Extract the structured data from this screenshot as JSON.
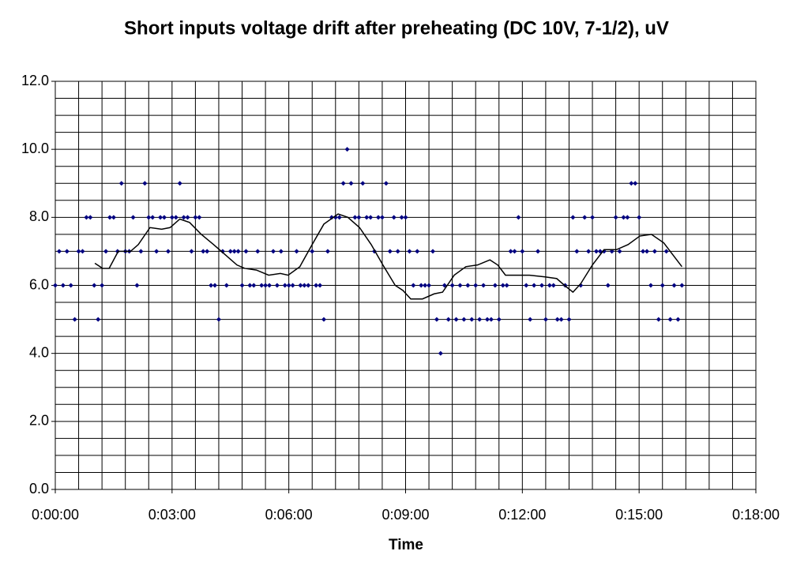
{
  "chart_data": {
    "type": "scatter",
    "title": "Short inputs voltage drift after preheating (DC 10V, 7-1/2), uV",
    "x_label": "Time",
    "xlim": [
      0,
      1080
    ],
    "ylim": [
      0,
      12
    ],
    "xticks": [
      {
        "value": 0,
        "label": "0:00:00"
      },
      {
        "value": 180,
        "label": "0:03:00"
      },
      {
        "value": 360,
        "label": "0:06:00"
      },
      {
        "value": 540,
        "label": "0:09:00"
      },
      {
        "value": 720,
        "label": "0:12:00"
      },
      {
        "value": 900,
        "label": "0:15:00"
      },
      {
        "value": 1080,
        "label": "0:18:00"
      }
    ],
    "yticks": [
      {
        "value": 0,
        "label": "0.0"
      },
      {
        "value": 2,
        "label": "2.0"
      },
      {
        "value": 4,
        "label": "4.0"
      },
      {
        "value": 6,
        "label": "6.0"
      },
      {
        "value": 8,
        "label": "8.0"
      },
      {
        "value": 10,
        "label": "10.0"
      },
      {
        "value": 12,
        "label": "12.0"
      }
    ],
    "xgrid": [
      0,
      36,
      72,
      108,
      144,
      180,
      216,
      252,
      288,
      324,
      360,
      396,
      432,
      468,
      504,
      540,
      576,
      612,
      648,
      684,
      720,
      756,
      792,
      828,
      864,
      900,
      936,
      972,
      1008,
      1044,
      1080
    ],
    "ygrid": [
      0,
      0.5,
      1,
      1.5,
      2,
      2.5,
      3,
      3.5,
      4,
      4.5,
      5,
      5.5,
      6,
      6.5,
      7,
      7.5,
      8,
      8.5,
      9,
      9.5,
      10,
      10.5,
      11,
      11.5,
      12
    ],
    "grid": true,
    "series": [
      {
        "type": "scatter",
        "color": "#000080",
        "x": [
          0,
          6,
          12,
          18,
          24,
          30,
          36,
          42,
          48,
          54,
          60,
          66,
          72,
          78,
          84,
          90,
          96,
          102,
          108,
          114,
          120,
          126,
          132,
          138,
          144,
          150,
          156,
          162,
          168,
          174,
          180,
          186,
          192,
          198,
          204,
          210,
          216,
          222,
          228,
          234,
          240,
          246,
          252,
          258,
          264,
          270,
          276,
          282,
          288,
          294,
          300,
          306,
          312,
          318,
          324,
          330,
          336,
          342,
          348,
          354,
          360,
          366,
          372,
          378,
          384,
          390,
          396,
          402,
          408,
          414,
          420,
          426,
          432,
          438,
          444,
          450,
          456,
          462,
          468,
          474,
          480,
          486,
          492,
          498,
          504,
          510,
          516,
          522,
          528,
          534,
          540,
          546,
          552,
          558,
          564,
          570,
          576,
          582,
          588,
          594,
          600,
          606,
          612,
          618,
          624,
          630,
          636,
          642,
          648,
          654,
          660,
          666,
          672,
          678,
          684,
          690,
          696,
          702,
          708,
          714,
          720,
          726,
          732,
          738,
          744,
          750,
          756,
          762,
          768,
          774,
          780,
          786,
          792,
          798,
          804,
          810,
          816,
          822,
          828,
          834,
          840,
          846,
          852,
          858,
          864,
          870,
          876,
          882,
          888,
          894,
          900,
          906,
          912,
          918,
          924,
          930,
          936,
          942,
          948,
          954,
          960,
          966
        ],
        "values": [
          6,
          7,
          6,
          7,
          6,
          5,
          7,
          7,
          8,
          8,
          6,
          5,
          6,
          7,
          8,
          8,
          7,
          9,
          7,
          7,
          8,
          6,
          7,
          9,
          8,
          8,
          7,
          8,
          8,
          7,
          8,
          8,
          9,
          8,
          8,
          7,
          8,
          8,
          7,
          7,
          6,
          6,
          5,
          7,
          6,
          7,
          7,
          7,
          6,
          7,
          6,
          6,
          7,
          6,
          6,
          6,
          7,
          6,
          7,
          6,
          6,
          6,
          7,
          6,
          6,
          6,
          7,
          6,
          6,
          5,
          7,
          8,
          8,
          8,
          9,
          10,
          9,
          8,
          8,
          9,
          8,
          8,
          7,
          8,
          8,
          9,
          7,
          8,
          7,
          8,
          8,
          7,
          6,
          7,
          6,
          6,
          6,
          7,
          5,
          4,
          6,
          5,
          6,
          5,
          6,
          5,
          6,
          5,
          6,
          5,
          6,
          5,
          5,
          6,
          5,
          6,
          6,
          7,
          7,
          8,
          7,
          6,
          5,
          6,
          7,
          6,
          5,
          6,
          6,
          5,
          5,
          6,
          5,
          8,
          7,
          6,
          8,
          7,
          8,
          7,
          7,
          7,
          6,
          7,
          8,
          7,
          8,
          8,
          9,
          9,
          8,
          7,
          7,
          6,
          7,
          5,
          6,
          7,
          5,
          6,
          5,
          6
        ]
      },
      {
        "type": "line",
        "color": "#000000",
        "x": [
          61,
          73,
          83,
          97,
          116,
          128,
          146,
          164,
          177,
          192,
          207,
          225,
          244,
          262,
          280,
          292,
          310,
          329,
          347,
          359,
          377,
          396,
          414,
          436,
          451,
          469,
          487,
          505,
          524,
          536,
          548,
          566,
          584,
          597,
          615,
          633,
          651,
          670,
          682,
          694,
          712,
          731,
          755,
          773,
          785,
          798,
          810,
          828,
          846,
          865,
          883,
          901,
          919,
          938,
          956,
          966
        ],
        "values": [
          6.65,
          6.5,
          6.5,
          7.0,
          7.0,
          7.2,
          7.7,
          7.65,
          7.7,
          7.95,
          7.85,
          7.5,
          7.2,
          6.9,
          6.6,
          6.5,
          6.45,
          6.3,
          6.35,
          6.3,
          6.55,
          7.2,
          7.8,
          8.1,
          8.0,
          7.7,
          7.2,
          6.6,
          6.0,
          5.85,
          5.6,
          5.6,
          5.75,
          5.8,
          6.3,
          6.55,
          6.6,
          6.75,
          6.6,
          6.3,
          6.3,
          6.3,
          6.25,
          6.2,
          6.0,
          5.8,
          6.05,
          6.6,
          7.05,
          7.05,
          7.2,
          7.45,
          7.5,
          7.25,
          6.8,
          6.55
        ]
      }
    ]
  }
}
